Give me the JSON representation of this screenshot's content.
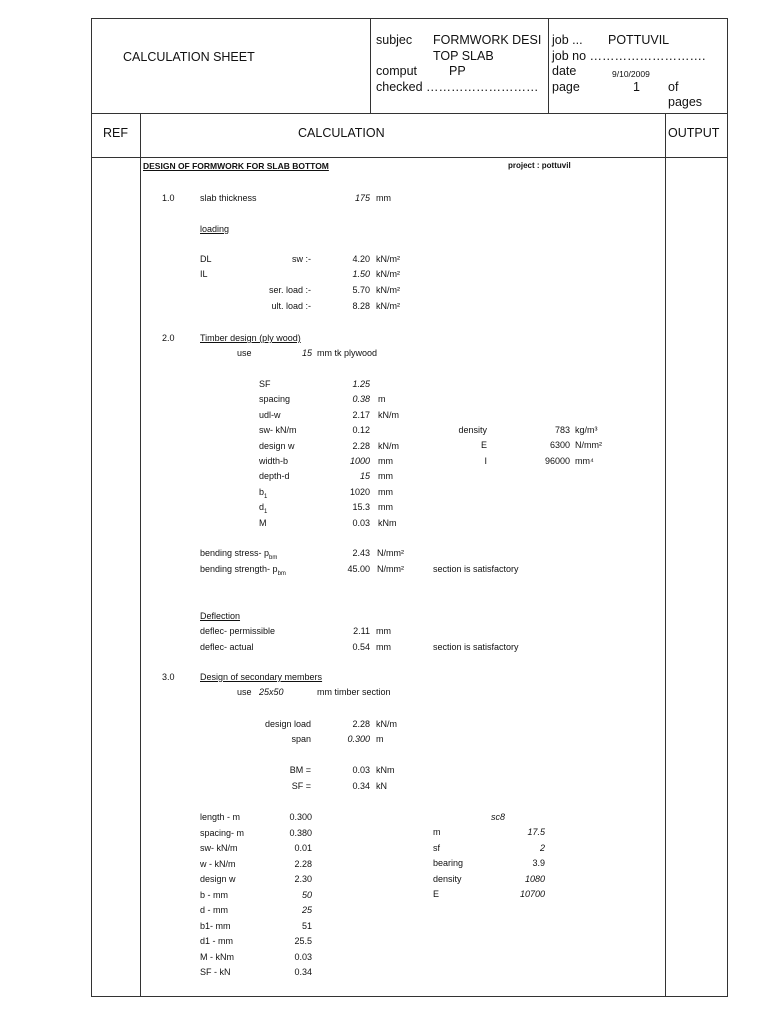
{
  "header": {
    "title": "CALCULATION SHEET",
    "subject_label": "subjec",
    "subject_line1": "FORMWORK DESI",
    "subject_line2": "TOP SLAB",
    "computed_label": "comput",
    "computed_value": "PP",
    "checked_label": "checked ………………………",
    "job_label": "job  ...",
    "job_value": "POTTUVIL",
    "job_no_label": "job no ……………………….",
    "date_label": "date",
    "date_value": "9/10/2009",
    "page_label": "page",
    "page_value": "1",
    "of_label": "of",
    "pages_label": "pages"
  },
  "columns": {
    "ref": "REF",
    "calculation": "CALCULATION",
    "output": "OUTPUT"
  },
  "doc": {
    "title": "DESIGN OF FORMWORK FOR SLAB BOTTOM",
    "project": "project :  pottuvil"
  },
  "s1": {
    "num": "1.0",
    "slab_label": "slab thickness",
    "slab_value": "175",
    "slab_unit": "mm",
    "loading": "loading",
    "dl": "DL",
    "sw": "sw :-",
    "dl_value": "4.20",
    "il": "IL",
    "il_value": "1.50",
    "ser": "ser. load :-",
    "ser_value": "5.70",
    "ult": "ult. load :-",
    "ult_value": "8.28",
    "unit_kn_m2": "kN/m²"
  },
  "s2": {
    "num": "2.0",
    "title": "Timber design (ply wood)",
    "use": "use",
    "thk": "15",
    "ply": "mm tk plywood",
    "rows": [
      {
        "label": "SF",
        "value": "1.25",
        "unit": ""
      },
      {
        "label": "spacing",
        "value": "0.38",
        "unit": "m"
      },
      {
        "label": "udl-w",
        "value": "2.17",
        "unit": "kN/m"
      },
      {
        "label": "sw- kN/m",
        "value": "0.12",
        "unit": ""
      },
      {
        "label": "design  w",
        "value": "2.28",
        "unit": "kN/m"
      },
      {
        "label": "width-b",
        "value": "1000",
        "unit": "mm"
      },
      {
        "label": "depth-d",
        "value": "15",
        "unit": "mm"
      },
      {
        "label": "b1",
        "value": "1020",
        "unit": "mm"
      },
      {
        "label": "d1",
        "value": "15.3",
        "unit": "mm"
      },
      {
        "label": "M",
        "value": "0.03",
        "unit": "kNm"
      }
    ],
    "props": [
      {
        "label": "density",
        "value": "783",
        "unit": "kg/m³"
      },
      {
        "label": "E",
        "value": "6300",
        "unit": "N/mm²"
      },
      {
        "label": "I",
        "value": "96000",
        "unit": "mm⁴"
      }
    ],
    "bstress_label": "bending stress-  p",
    "bstrength_label": "bending strength-  p",
    "sub_bm": "bm",
    "bstress_value": "2.43",
    "bstrength_value": "45.00",
    "unit_nmm2": "N/mm²",
    "satisfactory": "section is satisfactory",
    "deflection": "Deflection",
    "perm_label": "deflec- permissible",
    "perm_value": "2.11",
    "actual_label": "deflec- actual",
    "actual_value": "0.54",
    "unit_mm": "mm"
  },
  "s3": {
    "num": "3.0",
    "title": "Design of secondary members",
    "use": "use",
    "section": "25x50",
    "section_unit": "mm timber section",
    "design_load": "design load",
    "design_load_value": "2.28",
    "design_load_unit": "kN/m",
    "span": "span",
    "span_value": "0.300",
    "span_unit": "m",
    "bm": "BM =",
    "bm_value": "0.03",
    "bm_unit": "kNm",
    "sf": "SF =",
    "sf_value": "0.34",
    "sf_unit": "kN",
    "rows": [
      {
        "label": "length - m",
        "value": "0.300"
      },
      {
        "label": "spacing- m",
        "value": "0.380"
      },
      {
        "label": "sw- kN/m",
        "value": "0.01"
      },
      {
        "label": "w - kN/m",
        "value": "2.28"
      },
      {
        "label": "design  w",
        "value": "2.30"
      },
      {
        "label": "b - mm",
        "value": "50"
      },
      {
        "label": "d - mm",
        "value": "25"
      },
      {
        "label": "b1- mm",
        "value": "51"
      },
      {
        "label": "d1 - mm",
        "value": "25.5"
      },
      {
        "label": "M - kNm",
        "value": "0.03"
      },
      {
        "label": "SF - kN",
        "value": "0.34"
      }
    ],
    "grade": "sc8",
    "props": [
      {
        "label": "m",
        "value": "17.5"
      },
      {
        "label": "sf",
        "value": "2"
      },
      {
        "label": "bearing",
        "value": "3.9"
      },
      {
        "label": "density",
        "value": "1080"
      },
      {
        "label": "E",
        "value": "10700"
      }
    ]
  }
}
